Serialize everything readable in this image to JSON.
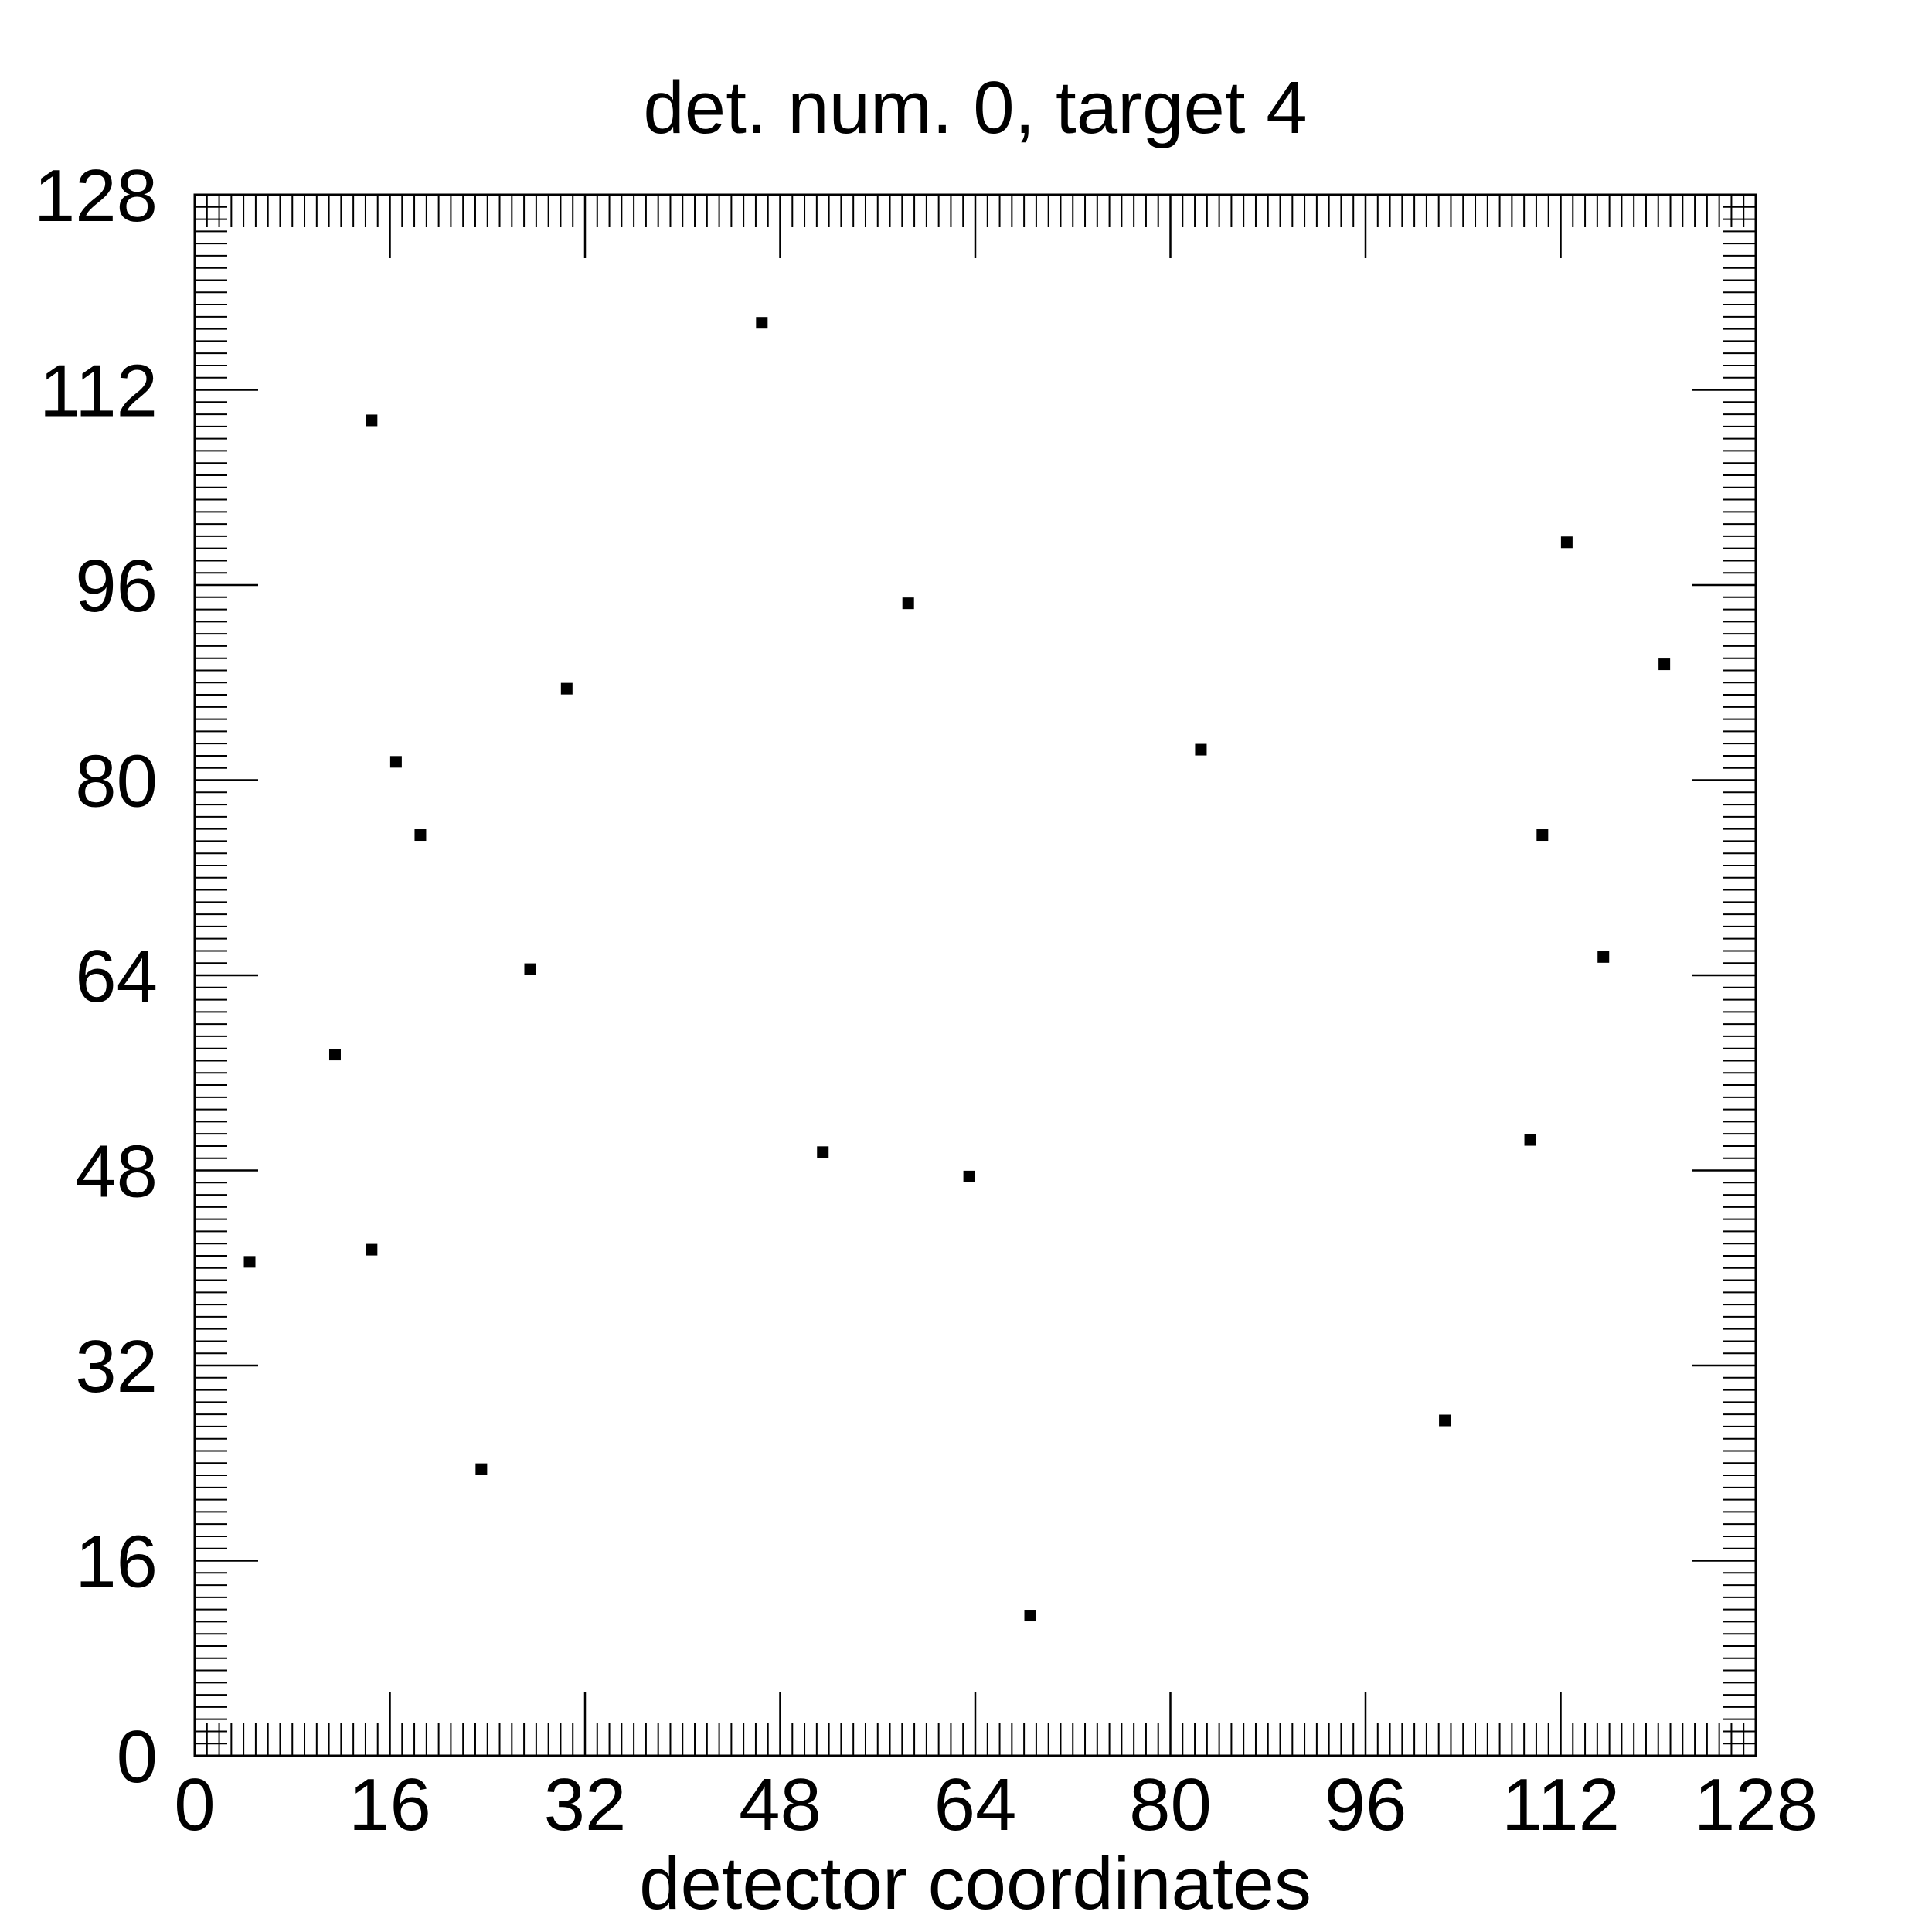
{
  "chart_data": {
    "type": "scatter",
    "title": "det. num. 0, target 4",
    "xlabel": "detector coordinates",
    "ylabel": "",
    "xlim": [
      0,
      128
    ],
    "ylim": [
      0,
      128
    ],
    "xticks": [
      0,
      16,
      32,
      48,
      64,
      80,
      96,
      112,
      128
    ],
    "yticks": [
      0,
      16,
      32,
      48,
      64,
      80,
      96,
      112,
      128
    ],
    "xtick_labels": [
      "0",
      "16",
      "32",
      "48",
      "64",
      "80",
      "96",
      "112",
      "128"
    ],
    "ytick_labels": [
      "0",
      "16",
      "32",
      "48",
      "64",
      "80",
      "96",
      "112",
      "128"
    ],
    "minor_tick_step": 1,
    "grid": false,
    "marker": "square",
    "color": "#000000",
    "points": [
      {
        "x": 4.5,
        "y": 40.5
      },
      {
        "x": 11.5,
        "y": 57.5
      },
      {
        "x": 14.5,
        "y": 41.5
      },
      {
        "x": 14.5,
        "y": 109.5
      },
      {
        "x": 16.5,
        "y": 81.5
      },
      {
        "x": 18.5,
        "y": 75.5
      },
      {
        "x": 23.5,
        "y": 23.5
      },
      {
        "x": 27.5,
        "y": 64.5
      },
      {
        "x": 30.5,
        "y": 87.5
      },
      {
        "x": 46.5,
        "y": 117.5
      },
      {
        "x": 51.5,
        "y": 49.5
      },
      {
        "x": 58.5,
        "y": 94.5
      },
      {
        "x": 63.5,
        "y": 47.5
      },
      {
        "x": 68.5,
        "y": 11.5
      },
      {
        "x": 82.5,
        "y": 82.5
      },
      {
        "x": 102.5,
        "y": 27.5
      },
      {
        "x": 109.5,
        "y": 50.5
      },
      {
        "x": 110.5,
        "y": 75.5
      },
      {
        "x": 112.5,
        "y": 99.5
      },
      {
        "x": 115.5,
        "y": 65.5
      },
      {
        "x": 120.5,
        "y": 89.5
      }
    ]
  }
}
